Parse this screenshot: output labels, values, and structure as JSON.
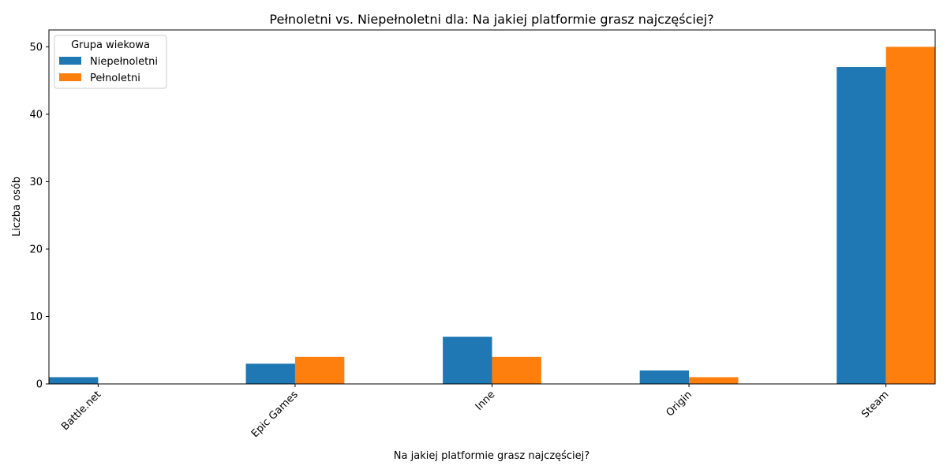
{
  "chart_data": {
    "type": "bar",
    "title": "Pełnoletni vs. Niepełnoletni dla: Na jakiej platformie grasz najczęściej?",
    "xlabel": "Na jakiej platformie grasz najczęściej?",
    "ylabel": "Liczba osób",
    "categories": [
      "Battle.net",
      "Epic Games",
      "Inne",
      "Origin",
      "Steam"
    ],
    "series": [
      {
        "name": "Niepełnoletni",
        "color": "#1f77b4",
        "values": [
          1,
          3,
          7,
          2,
          47
        ]
      },
      {
        "name": "Pełnoletni",
        "color": "#ff7f0e",
        "values": [
          0,
          4,
          4,
          1,
          50
        ]
      }
    ],
    "yticks": [
      0,
      10,
      20,
      30,
      40,
      50
    ],
    "ylim": [
      0,
      52.5
    ],
    "grid": false,
    "legend": {
      "title": "Grupa wiekowa",
      "placement": "top-left"
    }
  }
}
